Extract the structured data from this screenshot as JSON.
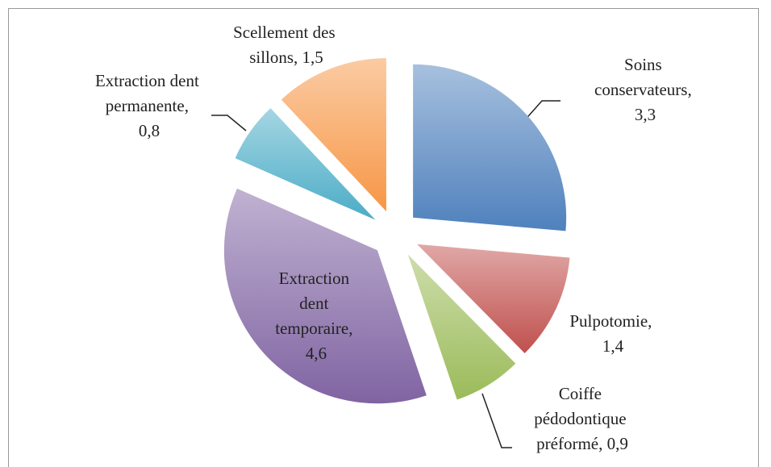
{
  "chart_data": {
    "type": "pie",
    "labels": [
      "Soins conservateurs, 3,3",
      "Pulpotomie, 1,4",
      "Coiffe pédodontique préformé, 0,9",
      "Extraction dent temporaire, 4,6",
      "Extraction dent permanente, 0,8",
      "Scellement des sillons, 1,5"
    ],
    "values": [
      3.3,
      1.4,
      0.9,
      4.6,
      0.8,
      1.5
    ],
    "colors": [
      "#4f81bd",
      "#c0504d",
      "#9bbb59",
      "#8064a2",
      "#4bacc6",
      "#f79646"
    ],
    "exploded": true
  }
}
